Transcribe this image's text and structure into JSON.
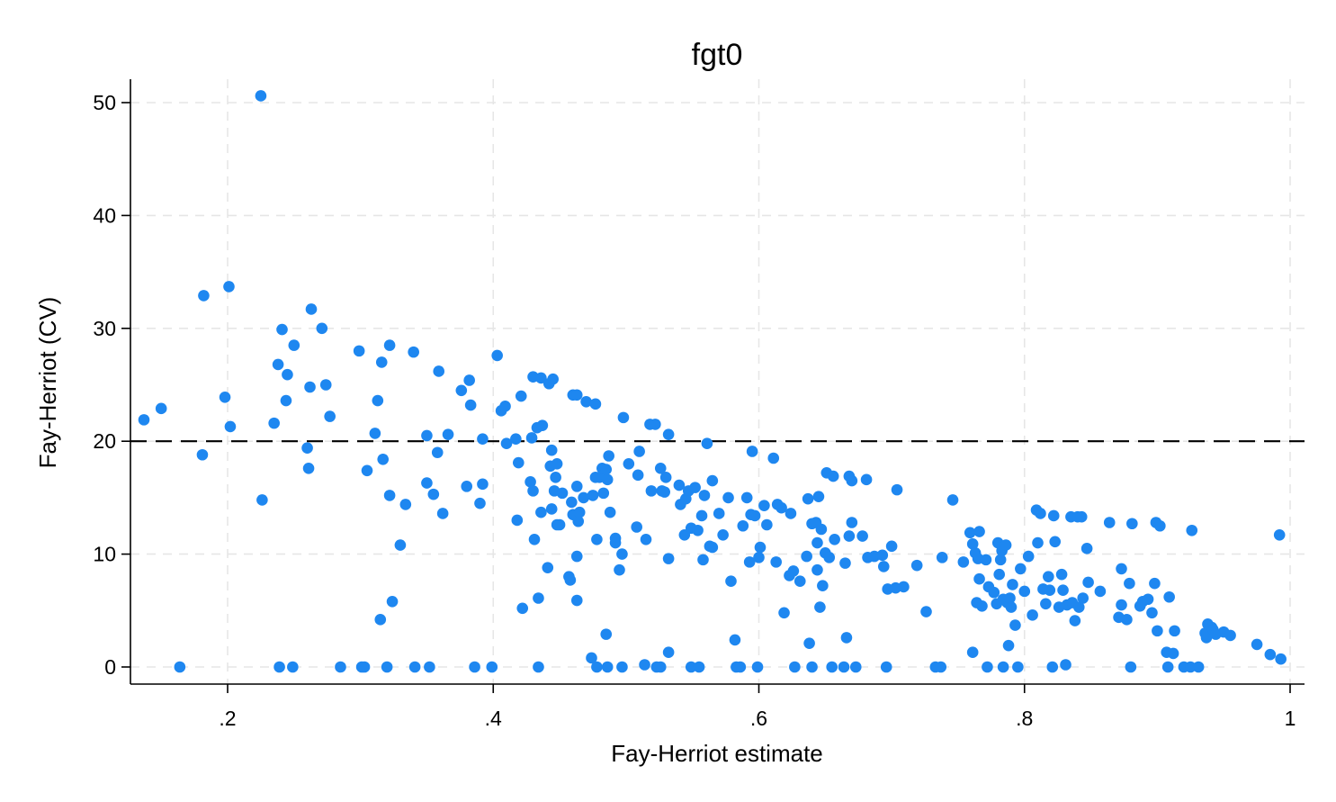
{
  "chart_data": {
    "type": "scatter",
    "title": "fgt0",
    "xlabel": "Fay-Herriot estimate",
    "ylabel": "Fay-Herriot (CV)",
    "xlim": [
      0.13,
      1.01
    ],
    "ylim": [
      -1.5,
      52
    ],
    "xticks": [
      0.2,
      0.4,
      0.6,
      0.8,
      1.0
    ],
    "xtick_labels": [
      ".2",
      ".4",
      ".6",
      ".8",
      "1"
    ],
    "yticks": [
      0,
      10,
      20,
      30,
      40,
      50
    ],
    "ytick_labels": [
      "0",
      "10",
      "20",
      "30",
      "40",
      "50"
    ],
    "grid": true,
    "reference_line": {
      "axis": "y",
      "value": 20,
      "style": "dashed",
      "color": "#000000"
    },
    "marker_color": "#1e87f0",
    "points": [
      [
        0.225,
        50.6
      ],
      [
        0.182,
        32.9
      ],
      [
        0.201,
        33.7
      ],
      [
        0.198,
        23.9
      ],
      [
        0.202,
        21.3
      ],
      [
        0.181,
        18.8
      ],
      [
        0.137,
        21.9
      ],
      [
        0.15,
        22.9
      ],
      [
        0.164,
        0.0
      ],
      [
        0.226,
        14.8
      ],
      [
        0.235,
        21.6
      ],
      [
        0.238,
        26.8
      ],
      [
        0.241,
        29.9
      ],
      [
        0.245,
        25.9
      ],
      [
        0.244,
        23.6
      ],
      [
        0.25,
        28.5
      ],
      [
        0.262,
        24.8
      ],
      [
        0.263,
        31.7
      ],
      [
        0.26,
        19.4
      ],
      [
        0.261,
        17.6
      ],
      [
        0.271,
        30.0
      ],
      [
        0.274,
        25.0
      ],
      [
        0.277,
        22.2
      ],
      [
        0.239,
        0.0
      ],
      [
        0.249,
        0.0
      ],
      [
        0.285,
        0.0
      ],
      [
        0.299,
        28.0
      ],
      [
        0.305,
        17.4
      ],
      [
        0.311,
        20.7
      ],
      [
        0.313,
        23.6
      ],
      [
        0.316,
        27.0
      ],
      [
        0.317,
        18.4
      ],
      [
        0.322,
        28.5
      ],
      [
        0.322,
        15.2
      ],
      [
        0.315,
        4.2
      ],
      [
        0.324,
        5.8
      ],
      [
        0.33,
        10.8
      ],
      [
        0.334,
        14.4
      ],
      [
        0.34,
        27.9
      ],
      [
        0.35,
        20.5
      ],
      [
        0.35,
        16.3
      ],
      [
        0.355,
        15.3
      ],
      [
        0.358,
        19.0
      ],
      [
        0.359,
        26.2
      ],
      [
        0.362,
        13.6
      ],
      [
        0.366,
        20.6
      ],
      [
        0.301,
        0.0
      ],
      [
        0.303,
        0.0
      ],
      [
        0.32,
        0.0
      ],
      [
        0.341,
        0.0
      ],
      [
        0.352,
        0.0
      ],
      [
        0.376,
        24.5
      ],
      [
        0.38,
        16.0
      ],
      [
        0.382,
        25.4
      ],
      [
        0.383,
        23.2
      ],
      [
        0.39,
        14.5
      ],
      [
        0.392,
        16.2
      ],
      [
        0.392,
        20.2
      ],
      [
        0.386,
        0.0
      ],
      [
        0.399,
        0.0
      ],
      [
        0.403,
        27.6
      ],
      [
        0.406,
        22.7
      ],
      [
        0.409,
        23.1
      ],
      [
        0.41,
        19.8
      ],
      [
        0.417,
        20.2
      ],
      [
        0.418,
        13.0
      ],
      [
        0.419,
        18.1
      ],
      [
        0.421,
        24.0
      ],
      [
        0.422,
        5.2
      ],
      [
        0.428,
        16.4
      ],
      [
        0.429,
        20.3
      ],
      [
        0.43,
        25.7
      ],
      [
        0.43,
        15.6
      ],
      [
        0.431,
        11.3
      ],
      [
        0.433,
        21.2
      ],
      [
        0.434,
        6.1
      ],
      [
        0.436,
        25.6
      ],
      [
        0.436,
        13.7
      ],
      [
        0.437,
        21.4
      ],
      [
        0.434,
        0.0
      ],
      [
        0.441,
        8.8
      ],
      [
        0.442,
        25.1
      ],
      [
        0.443,
        17.8
      ],
      [
        0.444,
        19.2
      ],
      [
        0.444,
        14.0
      ],
      [
        0.445,
        25.5
      ],
      [
        0.446,
        15.6
      ],
      [
        0.447,
        16.8
      ],
      [
        0.448,
        18.0
      ],
      [
        0.448,
        12.6
      ],
      [
        0.45,
        12.6
      ],
      [
        0.452,
        15.4
      ],
      [
        0.457,
        8.0
      ],
      [
        0.458,
        7.7
      ],
      [
        0.459,
        14.6
      ],
      [
        0.46,
        24.1
      ],
      [
        0.46,
        13.5
      ],
      [
        0.463,
        24.1
      ],
      [
        0.463,
        16.0
      ],
      [
        0.463,
        5.9
      ],
      [
        0.463,
        9.8
      ],
      [
        0.464,
        12.9
      ],
      [
        0.465,
        13.7
      ],
      [
        0.468,
        15.0
      ],
      [
        0.47,
        23.5
      ],
      [
        0.474,
        0.8
      ],
      [
        0.475,
        15.2
      ],
      [
        0.477,
        23.3
      ],
      [
        0.477,
        16.8
      ],
      [
        0.478,
        0.0
      ],
      [
        0.478,
        11.3
      ],
      [
        0.48,
        16.8
      ],
      [
        0.482,
        17.6
      ],
      [
        0.483,
        15.4
      ],
      [
        0.485,
        17.5
      ],
      [
        0.485,
        2.9
      ],
      [
        0.486,
        0.0
      ],
      [
        0.486,
        16.6
      ],
      [
        0.487,
        18.7
      ],
      [
        0.488,
        13.7
      ],
      [
        0.492,
        11.4
      ],
      [
        0.492,
        11.0
      ],
      [
        0.495,
        8.6
      ],
      [
        0.497,
        10.0
      ],
      [
        0.497,
        0.0
      ],
      [
        0.498,
        22.1
      ],
      [
        0.502,
        18.0
      ],
      [
        0.508,
        12.4
      ],
      [
        0.509,
        17.0
      ],
      [
        0.51,
        19.1
      ],
      [
        0.514,
        0.2
      ],
      [
        0.515,
        11.3
      ],
      [
        0.518,
        21.5
      ],
      [
        0.519,
        15.6
      ],
      [
        0.522,
        21.5
      ],
      [
        0.523,
        0.0
      ],
      [
        0.526,
        0.0
      ],
      [
        0.526,
        17.6
      ],
      [
        0.527,
        15.6
      ],
      [
        0.529,
        15.5
      ],
      [
        0.53,
        16.8
      ],
      [
        0.532,
        20.6
      ],
      [
        0.532,
        9.6
      ],
      [
        0.532,
        1.3
      ],
      [
        0.54,
        16.1
      ],
      [
        0.541,
        14.4
      ],
      [
        0.544,
        11.7
      ],
      [
        0.545,
        14.9
      ],
      [
        0.547,
        15.6
      ],
      [
        0.549,
        12.3
      ],
      [
        0.549,
        0.0
      ],
      [
        0.552,
        15.9
      ],
      [
        0.554,
        12.1
      ],
      [
        0.555,
        0.0
      ],
      [
        0.557,
        13.4
      ],
      [
        0.558,
        9.5
      ],
      [
        0.559,
        15.2
      ],
      [
        0.561,
        19.8
      ],
      [
        0.563,
        10.7
      ],
      [
        0.565,
        10.6
      ],
      [
        0.565,
        16.5
      ],
      [
        0.57,
        13.6
      ],
      [
        0.573,
        11.7
      ],
      [
        0.577,
        15.0
      ],
      [
        0.579,
        7.6
      ],
      [
        0.582,
        2.4
      ],
      [
        0.583,
        0.0
      ],
      [
        0.586,
        0.0
      ],
      [
        0.588,
        12.5
      ],
      [
        0.591,
        15.0
      ],
      [
        0.593,
        9.3
      ],
      [
        0.594,
        13.5
      ],
      [
        0.595,
        19.1
      ],
      [
        0.597,
        13.4
      ],
      [
        0.599,
        0.0
      ],
      [
        0.6,
        9.7
      ],
      [
        0.601,
        10.6
      ],
      [
        0.604,
        14.3
      ],
      [
        0.606,
        12.6
      ],
      [
        0.611,
        18.5
      ],
      [
        0.613,
        9.3
      ],
      [
        0.614,
        14.4
      ],
      [
        0.617,
        14.1
      ],
      [
        0.619,
        4.8
      ],
      [
        0.623,
        8.1
      ],
      [
        0.624,
        13.6
      ],
      [
        0.626,
        8.5
      ],
      [
        0.627,
        0.0
      ],
      [
        0.631,
        7.6
      ],
      [
        0.636,
        9.8
      ],
      [
        0.637,
        14.9
      ],
      [
        0.638,
        2.1
      ],
      [
        0.64,
        12.7
      ],
      [
        0.64,
        0.0
      ],
      [
        0.643,
        12.8
      ],
      [
        0.644,
        8.6
      ],
      [
        0.644,
        11.0
      ],
      [
        0.645,
        15.1
      ],
      [
        0.646,
        5.3
      ],
      [
        0.647,
        12.2
      ],
      [
        0.648,
        7.2
      ],
      [
        0.65,
        10.1
      ],
      [
        0.651,
        17.2
      ],
      [
        0.653,
        9.7
      ],
      [
        0.655,
        0.0
      ],
      [
        0.656,
        16.9
      ],
      [
        0.657,
        11.3
      ],
      [
        0.664,
        0.0
      ],
      [
        0.665,
        9.2
      ],
      [
        0.666,
        2.6
      ],
      [
        0.668,
        16.9
      ],
      [
        0.668,
        11.6
      ],
      [
        0.67,
        16.5
      ],
      [
        0.67,
        12.8
      ],
      [
        0.673,
        0.0
      ],
      [
        0.678,
        11.6
      ],
      [
        0.681,
        16.6
      ],
      [
        0.682,
        9.7
      ],
      [
        0.687,
        9.8
      ],
      [
        0.693,
        9.9
      ],
      [
        0.694,
        8.9
      ],
      [
        0.696,
        0.0
      ],
      [
        0.697,
        6.9
      ],
      [
        0.7,
        10.7
      ],
      [
        0.703,
        7.0
      ],
      [
        0.704,
        15.7
      ],
      [
        0.709,
        7.1
      ],
      [
        0.719,
        9.0
      ],
      [
        0.726,
        4.9
      ],
      [
        0.733,
        0.0
      ],
      [
        0.737,
        0.0
      ],
      [
        0.738,
        9.7
      ],
      [
        0.746,
        14.8
      ],
      [
        0.754,
        9.3
      ],
      [
        0.759,
        11.9
      ],
      [
        0.761,
        1.3
      ],
      [
        0.761,
        10.9
      ],
      [
        0.763,
        10.1
      ],
      [
        0.764,
        5.7
      ],
      [
        0.765,
        9.6
      ],
      [
        0.766,
        7.8
      ],
      [
        0.766,
        12.0
      ],
      [
        0.768,
        5.4
      ],
      [
        0.771,
        9.5
      ],
      [
        0.772,
        0.0
      ],
      [
        0.773,
        7.1
      ],
      [
        0.777,
        6.6
      ],
      [
        0.779,
        5.6
      ],
      [
        0.78,
        11.0
      ],
      [
        0.781,
        8.2
      ],
      [
        0.782,
        9.5
      ],
      [
        0.783,
        10.3
      ],
      [
        0.784,
        0.0
      ],
      [
        0.784,
        6.0
      ],
      [
        0.786,
        10.8
      ],
      [
        0.787,
        5.7
      ],
      [
        0.788,
        1.9
      ],
      [
        0.789,
        6.1
      ],
      [
        0.79,
        5.3
      ],
      [
        0.791,
        7.3
      ],
      [
        0.793,
        3.7
      ],
      [
        0.795,
        0.0
      ],
      [
        0.797,
        8.7
      ],
      [
        0.8,
        6.7
      ],
      [
        0.803,
        9.8
      ],
      [
        0.806,
        4.6
      ],
      [
        0.809,
        13.9
      ],
      [
        0.81,
        11.0
      ],
      [
        0.812,
        13.6
      ],
      [
        0.814,
        6.9
      ],
      [
        0.816,
        5.6
      ],
      [
        0.818,
        8.0
      ],
      [
        0.819,
        6.8
      ],
      [
        0.821,
        0.0
      ],
      [
        0.822,
        13.4
      ],
      [
        0.823,
        11.1
      ],
      [
        0.826,
        5.3
      ],
      [
        0.828,
        8.2
      ],
      [
        0.829,
        6.8
      ],
      [
        0.831,
        0.2
      ],
      [
        0.832,
        5.5
      ],
      [
        0.835,
        13.3
      ],
      [
        0.836,
        5.7
      ],
      [
        0.838,
        4.1
      ],
      [
        0.84,
        13.3
      ],
      [
        0.841,
        5.3
      ],
      [
        0.843,
        13.3
      ],
      [
        0.844,
        6.1
      ],
      [
        0.847,
        10.5
      ],
      [
        0.848,
        7.5
      ],
      [
        0.857,
        6.7
      ],
      [
        0.864,
        12.8
      ],
      [
        0.871,
        4.4
      ],
      [
        0.873,
        8.7
      ],
      [
        0.873,
        5.5
      ],
      [
        0.877,
        4.2
      ],
      [
        0.879,
        7.4
      ],
      [
        0.88,
        0.0
      ],
      [
        0.881,
        12.7
      ],
      [
        0.887,
        5.4
      ],
      [
        0.889,
        5.8
      ],
      [
        0.893,
        6.0
      ],
      [
        0.896,
        4.8
      ],
      [
        0.898,
        7.4
      ],
      [
        0.899,
        12.8
      ],
      [
        0.9,
        3.2
      ],
      [
        0.902,
        12.5
      ],
      [
        0.907,
        1.3
      ],
      [
        0.908,
        0.0
      ],
      [
        0.909,
        6.2
      ],
      [
        0.912,
        1.2
      ],
      [
        0.913,
        3.2
      ],
      [
        0.92,
        0.0
      ],
      [
        0.925,
        0.0
      ],
      [
        0.926,
        12.1
      ],
      [
        0.931,
        0.0
      ],
      [
        0.936,
        3.0
      ],
      [
        0.937,
        2.6
      ],
      [
        0.938,
        3.8
      ],
      [
        0.941,
        3.5
      ],
      [
        0.942,
        3.3
      ],
      [
        0.944,
        2.9
      ],
      [
        0.95,
        3.1
      ],
      [
        0.955,
        2.8
      ],
      [
        0.975,
        2.0
      ],
      [
        0.985,
        1.1
      ],
      [
        0.992,
        11.7
      ],
      [
        0.993,
        0.7
      ]
    ]
  }
}
